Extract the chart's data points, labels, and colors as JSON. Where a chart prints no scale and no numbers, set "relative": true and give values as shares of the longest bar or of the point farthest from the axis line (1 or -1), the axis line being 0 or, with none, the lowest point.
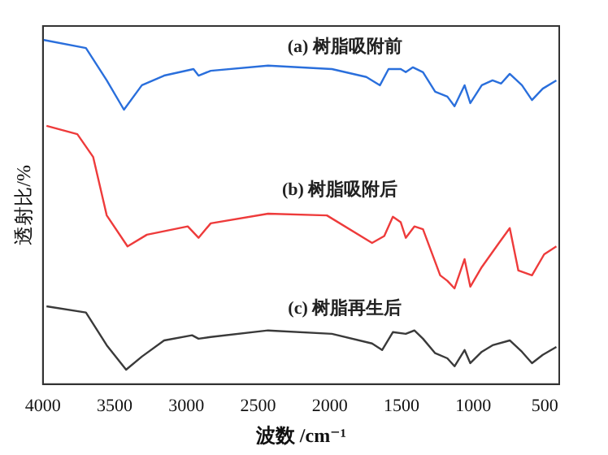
{
  "chart_data": {
    "type": "line",
    "xlabel": "波数 /cm⁻¹",
    "ylabel": "透射比/%",
    "relative": true,
    "legend": false,
    "grid": false,
    "marker": "none",
    "line_style": "solid",
    "xlim": [
      4000,
      400
    ],
    "xticks": [
      4000,
      3500,
      3000,
      2500,
      2000,
      1500,
      1000,
      500
    ],
    "series": [
      {
        "name": "(a) 树脂吸附前",
        "color": "#2a6fdc",
        "x": [
          4000,
          3700,
          3555,
          3435,
          3310,
          3155,
          2950,
          2915,
          2830,
          2430,
          1985,
          1745,
          1650,
          1590,
          1505,
          1470,
          1420,
          1350,
          1265,
          1180,
          1130,
          1060,
          1020,
          940,
          865,
          805,
          745,
          660,
          590,
          515,
          420
        ],
        "values": [
          1,
          0.976,
          0.882,
          0.797,
          0.868,
          0.896,
          0.915,
          0.896,
          0.91,
          0.925,
          0.915,
          0.892,
          0.868,
          0.915,
          0.915,
          0.906,
          0.92,
          0.906,
          0.849,
          0.835,
          0.807,
          0.868,
          0.816,
          0.868,
          0.882,
          0.873,
          0.901,
          0.868,
          0.825,
          0.858,
          0.882
        ]
      },
      {
        "name": "(b) 树脂吸附后",
        "color": "#ee3b3b",
        "x": [
          3975,
          3760,
          3650,
          3555,
          3410,
          3275,
          2990,
          2915,
          2830,
          2430,
          2020,
          1705,
          1620,
          1560,
          1505,
          1470,
          1410,
          1350,
          1230,
          1180,
          1130,
          1060,
          1020,
          940,
          820,
          745,
          685,
          590,
          505,
          420
        ],
        "values": [
          0.75,
          0.726,
          0.66,
          0.49,
          0.4,
          0.434,
          0.458,
          0.425,
          0.467,
          0.495,
          0.49,
          0.41,
          0.43,
          0.486,
          0.47,
          0.425,
          0.458,
          0.45,
          0.316,
          0.3,
          0.278,
          0.363,
          0.283,
          0.34,
          0.41,
          0.453,
          0.33,
          0.316,
          0.377,
          0.4
        ]
      },
      {
        "name": "(c) 树脂再生后",
        "color": "#3a3a3a",
        "x": [
          3975,
          3700,
          3555,
          3420,
          3310,
          3155,
          2960,
          2915,
          2830,
          2430,
          1985,
          1705,
          1635,
          1560,
          1470,
          1410,
          1350,
          1265,
          1180,
          1130,
          1060,
          1020,
          940,
          865,
          745,
          660,
          590,
          515,
          420
        ],
        "values": [
          0.226,
          0.208,
          0.113,
          0.042,
          0.08,
          0.127,
          0.142,
          0.132,
          0.137,
          0.156,
          0.146,
          0.118,
          0.099,
          0.151,
          0.146,
          0.156,
          0.132,
          0.09,
          0.075,
          0.052,
          0.099,
          0.061,
          0.094,
          0.113,
          0.127,
          0.094,
          0.061,
          0.085,
          0.108
        ]
      }
    ]
  }
}
